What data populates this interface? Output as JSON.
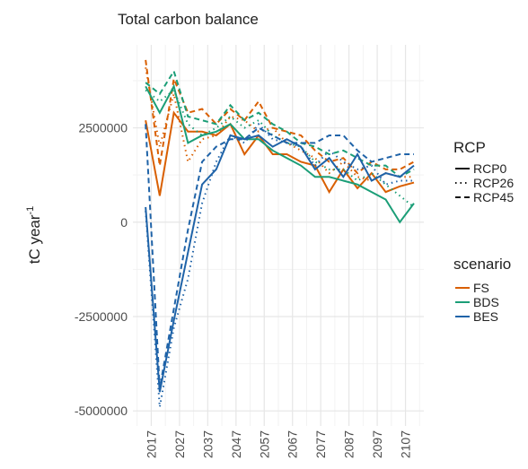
{
  "chart_data": {
    "type": "line",
    "title": "Total carbon balance",
    "y_label": "tC year",
    "y_label_superscript": "-1",
    "x": [
      2015,
      2020,
      2025,
      2030,
      2035,
      2040,
      2045,
      2050,
      2055,
      2060,
      2065,
      2070,
      2075,
      2080,
      2085,
      2090,
      2095,
      2100,
      2105,
      2110
    ],
    "xlim": [
      2010.5,
      2113.5
    ],
    "xticks": [
      2017,
      2027,
      2037,
      2047,
      2057,
      2067,
      2077,
      2087,
      2097,
      2107
    ],
    "ylim": [
      -5400000,
      4700000
    ],
    "yticks": [
      -5000000,
      -2500000,
      0,
      2500000
    ],
    "grid": true,
    "legend_position": "right",
    "linetype_legend": {
      "title": "RCP",
      "items": [
        {
          "name": "RCP0",
          "dash": "solid"
        },
        {
          "name": "RCP26",
          "dash": "dotted"
        },
        {
          "name": "RCP45",
          "dash": "dashed"
        }
      ]
    },
    "color_legend": {
      "title": "scenario",
      "items": [
        {
          "name": "FS",
          "color": "#d95f02"
        },
        {
          "name": "BDS",
          "color": "#1b9e77"
        },
        {
          "name": "BES",
          "color": "#1f63a8"
        }
      ]
    },
    "series": [
      {
        "scenario": "FS",
        "rcp": "RCP0",
        "values": [
          2700000,
          700000,
          2900000,
          2400000,
          2400000,
          2300000,
          2600000,
          1800000,
          2300000,
          1800000,
          1800000,
          1600000,
          1500000,
          800000,
          1400000,
          900000,
          1300000,
          800000,
          950000,
          1050000
        ]
      },
      {
        "scenario": "FS",
        "rcp": "RCP26",
        "values": [
          4100000,
          2000000,
          3400000,
          1600000,
          2200000,
          2300000,
          2800000,
          2700000,
          2400000,
          2500000,
          2100000,
          1900000,
          1700000,
          1300000,
          1600000,
          1200000,
          1100000,
          1300000,
          1200000,
          1200000
        ]
      },
      {
        "scenario": "FS",
        "rcp": "RCP45",
        "values": [
          4300000,
          1500000,
          3800000,
          2900000,
          3000000,
          2600000,
          3000000,
          2700000,
          3200000,
          2500000,
          2400000,
          2300000,
          1900000,
          1600000,
          1700000,
          1300000,
          1600000,
          1400000,
          1400000,
          1600000
        ]
      },
      {
        "scenario": "BDS",
        "rcp": "RCP0",
        "values": [
          3600000,
          2900000,
          3600000,
          2100000,
          2300000,
          2400000,
          2600000,
          2200000,
          2200000,
          1900000,
          1700000,
          1500000,
          1200000,
          1200000,
          1100000,
          1000000,
          800000,
          600000,
          0,
          500000
        ]
      },
      {
        "scenario": "BDS",
        "rcp": "RCP26",
        "values": [
          3500000,
          3200000,
          3500000,
          2600000,
          2300000,
          2500000,
          2800000,
          2500000,
          2700000,
          2300000,
          2100000,
          2000000,
          1600000,
          1400000,
          1400000,
          1100000,
          1300000,
          1000000,
          700000,
          400000
        ]
      },
      {
        "scenario": "BDS",
        "rcp": "RCP45",
        "values": [
          3700000,
          3400000,
          4000000,
          2800000,
          2700000,
          2600000,
          3100000,
          2700000,
          2900000,
          2600000,
          2400000,
          2100000,
          2000000,
          1800000,
          1900000,
          1700000,
          1500000,
          1500000,
          1200000,
          1400000
        ]
      },
      {
        "scenario": "BES",
        "rcp": "RCP0",
        "values": [
          400000,
          -4500000,
          -2600000,
          -800000,
          1000000,
          1400000,
          2300000,
          2200000,
          2300000,
          2000000,
          2200000,
          2000000,
          1400000,
          1700000,
          1200000,
          1800000,
          1100000,
          1300000,
          1200000,
          1500000
        ]
      },
      {
        "scenario": "BES",
        "rcp": "RCP26",
        "values": [
          300000,
          -4900000,
          -2800000,
          -1500000,
          500000,
          1600000,
          2300000,
          2100000,
          2600000,
          2200000,
          2100000,
          2000000,
          1500000,
          1900000,
          1600000,
          1400000,
          1500000,
          1000000,
          1100000,
          1100000
        ]
      },
      {
        "scenario": "BES",
        "rcp": "RCP45",
        "values": [
          2600000,
          -4400000,
          -2300000,
          -200000,
          1600000,
          2000000,
          2200000,
          2200000,
          2500000,
          2300000,
          2100000,
          2100000,
          2100000,
          2300000,
          2300000,
          1900000,
          1600000,
          1700000,
          1800000,
          1800000
        ]
      }
    ]
  }
}
